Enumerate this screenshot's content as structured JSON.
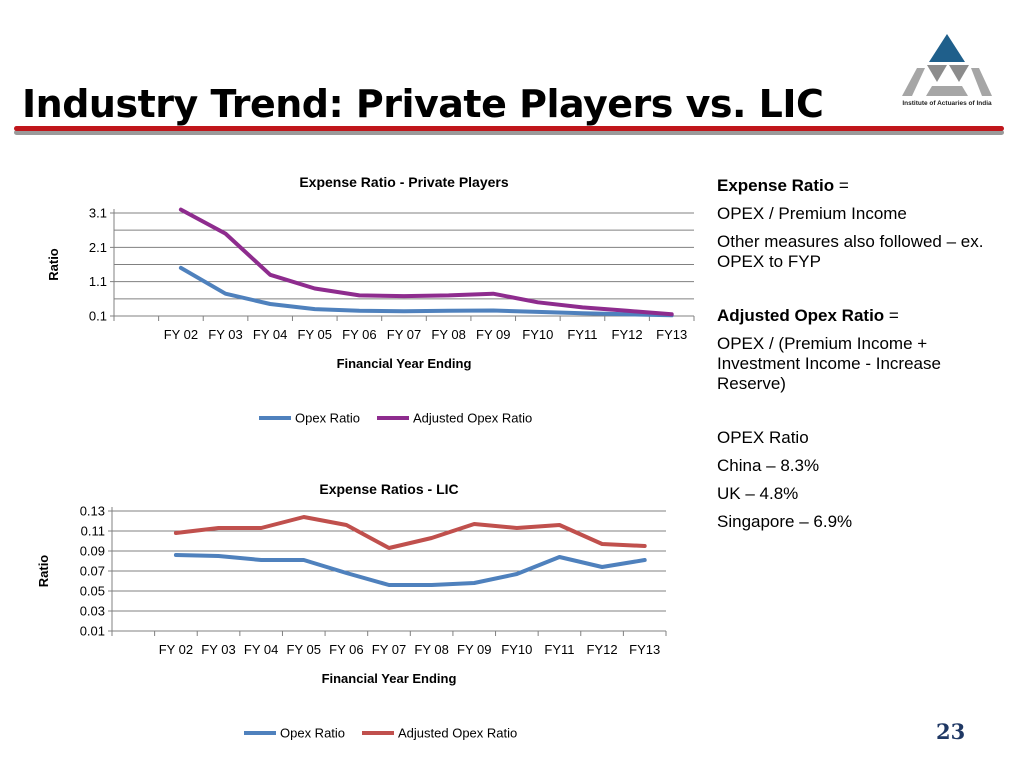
{
  "slide": {
    "title": "Industry Trend: Private Players vs. LIC",
    "page_number": "23",
    "logo_text": "Institute of Actuaries of India"
  },
  "panel": {
    "expense_ratio_label": "Expense Ratio",
    "expense_ratio_eq": " =",
    "expense_ratio_def": "OPEX / Premium Income",
    "other_measures": "Other measures also followed – ex. OPEX to FYP",
    "adjusted_label": "Adjusted Opex Ratio",
    "adjusted_eq": " =",
    "adjusted_def": "OPEX / (Premium Income + Investment Income -  Increase Reserve)",
    "opex_heading": "OPEX Ratio",
    "china": "China – 8.3%",
    "uk": "UK – 4.8%",
    "singapore": "Singapore – 6.9%"
  },
  "chart_data": [
    {
      "type": "line",
      "title": "Expense Ratio  - Private Players",
      "xlabel": "Financial Year Ending",
      "ylabel": "Ratio",
      "categories": [
        "FY 02",
        "FY 03",
        "FY 04",
        "FY 05",
        "FY 06",
        "FY 07",
        "FY 08",
        "FY 09",
        "FY10",
        "FY11",
        "FY12",
        "FY13"
      ],
      "yticks": [
        "0.1",
        "1.1",
        "2.1",
        "3.1"
      ],
      "ylim": [
        0.1,
        3.1
      ],
      "grid": true,
      "legend_position": "bottom",
      "series": [
        {
          "name": "Opex Ratio",
          "color": "#4f81bd",
          "values": [
            1.5,
            0.75,
            0.45,
            0.3,
            0.25,
            0.24,
            0.25,
            0.26,
            0.22,
            0.18,
            0.15,
            0.12
          ]
        },
        {
          "name": "Adjusted Opex Ratio",
          "color": "#8e2c8e",
          "values": [
            3.2,
            2.5,
            1.3,
            0.9,
            0.7,
            0.68,
            0.7,
            0.75,
            0.5,
            0.35,
            0.25,
            0.15
          ]
        }
      ]
    },
    {
      "type": "line",
      "title": "Expense Ratios - LIC",
      "xlabel": "Financial Year Ending",
      "ylabel": "Ratio",
      "categories": [
        "FY 02",
        "FY 03",
        "FY 04",
        "FY 05",
        "FY 06",
        "FY 07",
        "FY 08",
        "FY 09",
        "FY10",
        "FY11",
        "FY12",
        "FY13"
      ],
      "yticks": [
        "0.01",
        "0.03",
        "0.05",
        "0.07",
        "0.09",
        "0.11",
        "0.13"
      ],
      "ylim": [
        0.01,
        0.13
      ],
      "grid": true,
      "legend_position": "bottom",
      "series": [
        {
          "name": "Opex Ratio",
          "color": "#4f81bd",
          "values": [
            0.086,
            0.085,
            0.081,
            0.081,
            0.068,
            0.056,
            0.056,
            0.058,
            0.067,
            0.084,
            0.074,
            0.081
          ]
        },
        {
          "name": "Adjusted Opex Ratio",
          "color": "#c0504d",
          "values": [
            0.108,
            0.113,
            0.113,
            0.124,
            0.116,
            0.093,
            0.103,
            0.117,
            0.113,
            0.116,
            0.097,
            0.095
          ]
        }
      ]
    }
  ]
}
